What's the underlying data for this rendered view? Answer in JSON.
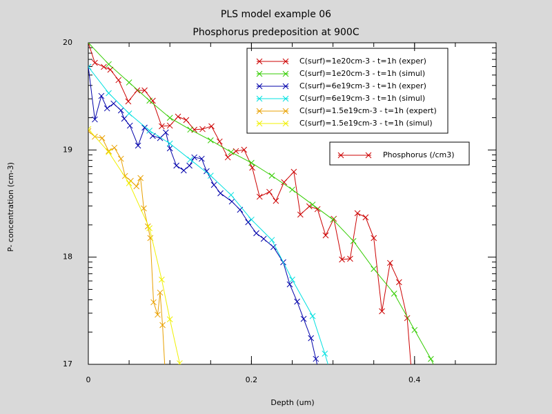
{
  "chart_data": {
    "type": "line",
    "title": "PLS model example 06",
    "subtitle": "Phosphorus predeposition at 900C",
    "xlabel": "Depth (um)",
    "ylabel": "P- concentration (cm-3)",
    "xlim": [
      0,
      0.5
    ],
    "xticks": [
      0,
      0.2,
      0.4
    ],
    "ylim": [
      17,
      20
    ],
    "yticks": [
      17,
      18,
      19,
      20
    ],
    "legend2_label": "Phosphorus (/cm3)",
    "series": [
      {
        "name": "C(surf)=1e20cm-3 - t=1h (exper)",
        "color": "#cc0000",
        "x": [
          0,
          0.008,
          0.019,
          0.027,
          0.037,
          0.049,
          0.06,
          0.069,
          0.079,
          0.09,
          0.1,
          0.11,
          0.12,
          0.13,
          0.14,
          0.151,
          0.161,
          0.171,
          0.181,
          0.191,
          0.201,
          0.21,
          0.222,
          0.23,
          0.24,
          0.252,
          0.26,
          0.271,
          0.281,
          0.291,
          0.301,
          0.311,
          0.321,
          0.33,
          0.34,
          0.35,
          0.36,
          0.37,
          0.381,
          0.391,
          0.396
        ],
        "values": [
          20,
          19.813,
          19.775,
          19.749,
          19.652,
          19.453,
          19.556,
          19.556,
          19.459,
          19.221,
          19.227,
          19.311,
          19.279,
          19.189,
          19.195,
          19.221,
          19.079,
          18.931,
          18.989,
          19.002,
          18.835,
          18.564,
          18.609,
          18.525,
          18.699,
          18.796,
          18.397,
          18.474,
          18.448,
          18.203,
          18.358,
          17.978,
          17.985,
          18.41,
          18.371,
          18.178,
          17.495,
          17.946,
          17.766,
          17.431,
          16.95
        ]
      },
      {
        "name": "C(surf)=1e20cm-3 - t=1h (simul)",
        "color": "#33cc00",
        "x": [
          0,
          0.025,
          0.05,
          0.075,
          0.1,
          0.125,
          0.15,
          0.175,
          0.2,
          0.225,
          0.25,
          0.275,
          0.3,
          0.325,
          0.35,
          0.375,
          0.4,
          0.42,
          0.425
        ],
        "values": [
          20,
          19.8,
          19.63,
          19.46,
          19.3,
          19.19,
          19.09,
          18.98,
          18.88,
          18.76,
          18.63,
          18.49,
          18.35,
          18.15,
          17.89,
          17.66,
          17.32,
          17.05,
          16.97
        ]
      },
      {
        "name": "C(surf)=6e19cm-3 - t=1h (exper)",
        "color": "#0000aa",
        "x": [
          0,
          0.008,
          0.016,
          0.023,
          0.031,
          0.04,
          0.044,
          0.051,
          0.061,
          0.069,
          0.079,
          0.088,
          0.095,
          0.1,
          0.108,
          0.117,
          0.124,
          0.13,
          0.139,
          0.145,
          0.154,
          0.162,
          0.176,
          0.186,
          0.196,
          0.206,
          0.215,
          0.227,
          0.239,
          0.247,
          0.256,
          0.264,
          0.273,
          0.279,
          0.282
        ],
        "values": [
          19.775,
          19.285,
          19.504,
          19.388,
          19.433,
          19.369,
          19.292,
          19.227,
          19.041,
          19.208,
          19.131,
          19.111,
          19.163,
          19.015,
          18.854,
          18.809,
          18.854,
          18.931,
          18.918,
          18.802,
          18.674,
          18.596,
          18.519,
          18.442,
          18.326,
          18.223,
          18.171,
          18.094,
          17.952,
          17.746,
          17.585,
          17.424,
          17.244,
          17.051,
          16.95
        ]
      },
      {
        "name": "C(surf)=6e19cm-3 - t=1h (simul)",
        "color": "#00e0e0",
        "x": [
          0,
          0.025,
          0.05,
          0.075,
          0.1,
          0.125,
          0.15,
          0.175,
          0.2,
          0.225,
          0.25,
          0.275,
          0.29,
          0.295
        ],
        "values": [
          19.775,
          19.53,
          19.34,
          19.18,
          19.06,
          18.91,
          18.76,
          18.58,
          18.35,
          18.16,
          17.79,
          17.45,
          17.1,
          16.97
        ]
      },
      {
        "name": "C(surf)=1.5e19cm-3 - t=1h (expert)",
        "color": "#e8a000",
        "x": [
          0,
          0.008,
          0.017,
          0.025,
          0.032,
          0.04,
          0.045,
          0.052,
          0.059,
          0.064,
          0.068,
          0.073,
          0.076,
          0.08,
          0.085,
          0.088,
          0.091,
          0.094
        ],
        "values": [
          19.176,
          19.124,
          19.111,
          18.989,
          19.021,
          18.918,
          18.757,
          18.712,
          18.661,
          18.738,
          18.455,
          18.287,
          18.178,
          17.579,
          17.463,
          17.669,
          17.366,
          16.95
        ]
      },
      {
        "name": "C(surf)=1.5e19cm-3 - t=1h (simul)",
        "color": "#f0f000",
        "x": [
          0,
          0.025,
          0.05,
          0.075,
          0.09,
          0.1,
          0.112,
          0.113
        ],
        "values": [
          19.195,
          18.98,
          18.69,
          18.27,
          17.79,
          17.42,
          17.01,
          16.97
        ]
      }
    ]
  }
}
